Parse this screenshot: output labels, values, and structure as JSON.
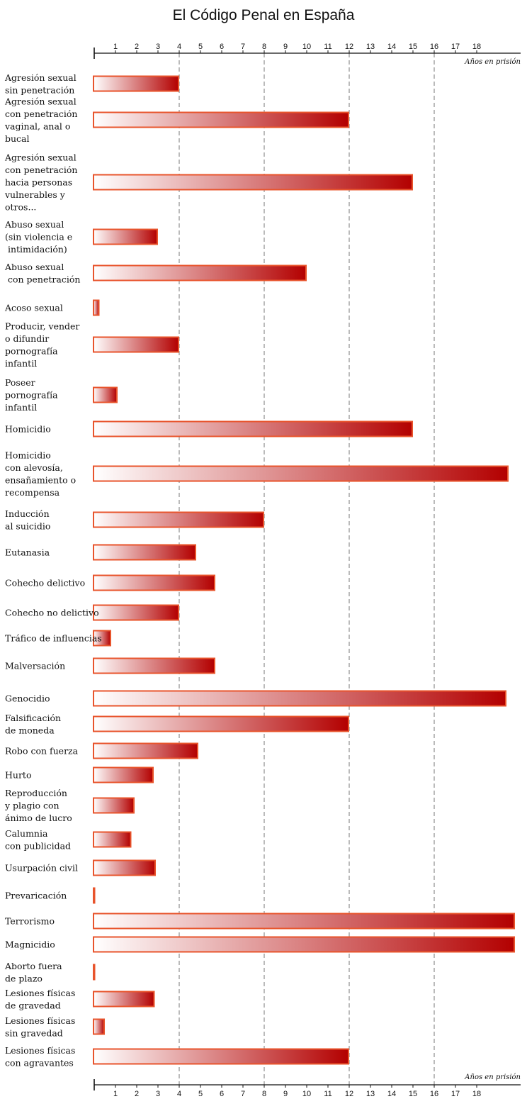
{
  "chart_data": {
    "type": "bar",
    "orientation": "horizontal",
    "title": "El Código Penal en España",
    "xlabel": "Años en prisión",
    "ticks": [
      "1",
      "2",
      "3",
      "4",
      "5",
      "6",
      "7",
      "8",
      "9",
      "10",
      "11",
      "12",
      "13",
      "14",
      "15",
      "16",
      "17",
      "18"
    ],
    "xlim": [
      0,
      20
    ],
    "grid_dashed_at": [
      4,
      8,
      12,
      16
    ],
    "bar_color_start": "#ffffff",
    "bar_color_end": "#b30000",
    "bar_border_color": "#e8542c",
    "categories": [
      [
        "Agresión sexual",
        "sin penetración"
      ],
      [
        "Agresión sexual",
        "con penetración",
        "vaginal, anal o",
        "bucal"
      ],
      [
        "Agresión sexual",
        "con penetración",
        "hacia personas",
        "vulnerables y",
        "otros..."
      ],
      [
        "Abuso sexual",
        "(sin violencia e",
        " intimidación)"
      ],
      [
        "Abuso sexual",
        " con penetración"
      ],
      [
        "Acoso sexual"
      ],
      [
        "Producir, vender",
        "o difundir",
        "pornografía",
        "infantil"
      ],
      [
        "Poseer",
        "pornografía",
        "infantil"
      ],
      [
        "Homicidio"
      ],
      [
        "Homicidio",
        "con alevosía,",
        "ensañamiento o",
        "recompensa"
      ],
      [
        "Inducción",
        "al suicidio"
      ],
      [
        "Eutanasia"
      ],
      [
        "Cohecho delictivo"
      ],
      [
        "Cohecho no delictivo"
      ],
      [
        "Tráfico de influencias"
      ],
      [
        "Malversación"
      ],
      [
        "Genocidio"
      ],
      [
        "Falsificación",
        "de moneda"
      ],
      [
        "Robo con fuerza"
      ],
      [
        "Hurto"
      ],
      [
        "Reproducción",
        "y plagio con",
        "ánimo de lucro"
      ],
      [
        "Calumnia",
        "con publicidad"
      ],
      [
        "Usurpación civil"
      ],
      [
        "Prevaricación"
      ],
      [
        "Terrorismo"
      ],
      [
        "Magnicidio"
      ],
      [
        "Aborto fuera",
        "de plazo"
      ],
      [
        "Lesiones físicas",
        "de gravedad"
      ],
      [
        "Lesiones físicas",
        "sin gravedad"
      ],
      [
        "Lesiones físicas",
        "con agravantes"
      ]
    ],
    "values": [
      4,
      12,
      15,
      3,
      10,
      0.25,
      4,
      1.1,
      15,
      19.5,
      8,
      4.8,
      5.7,
      4,
      0.8,
      5.7,
      19.4,
      12,
      4.9,
      2.8,
      1.9,
      1.75,
      2.9,
      0.05,
      19.8,
      19.8,
      0.05,
      2.85,
      0.5,
      12
    ]
  }
}
